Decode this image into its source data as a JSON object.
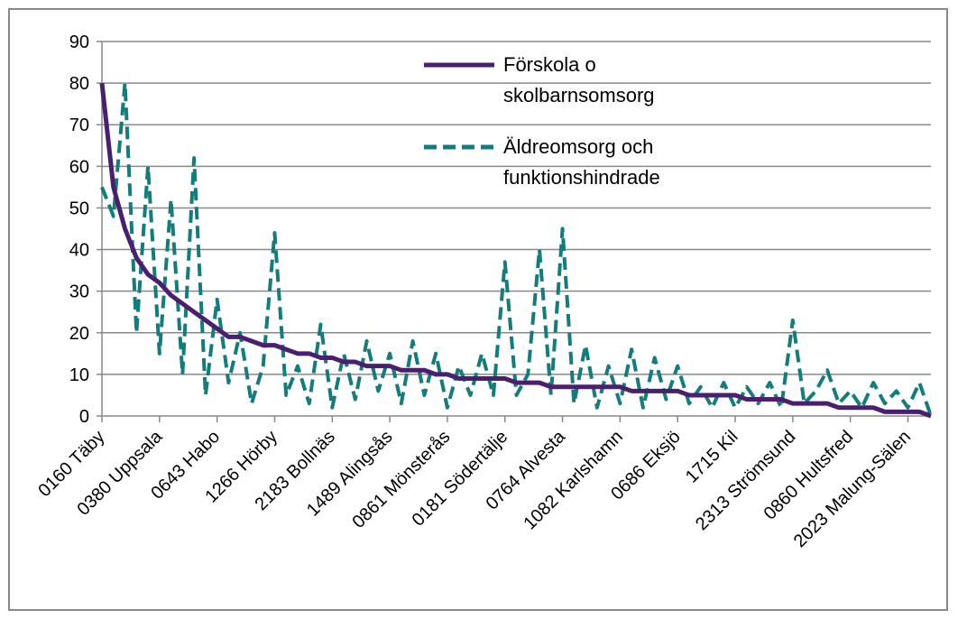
{
  "chart_data": {
    "type": "line",
    "categories": [
      "0160 Täby",
      null,
      null,
      null,
      null,
      "0380 Uppsala",
      null,
      null,
      null,
      null,
      "0643 Habo",
      null,
      null,
      null,
      null,
      "1266 Hörby",
      null,
      null,
      null,
      null,
      "2183 Bollnäs",
      null,
      null,
      null,
      null,
      "1489 Alingsås",
      null,
      null,
      null,
      null,
      "0861 Mönsterås",
      null,
      null,
      null,
      null,
      "0181 Södertälje",
      null,
      null,
      null,
      null,
      "0764 Alvesta",
      null,
      null,
      null,
      null,
      "1082 Karlshamn",
      null,
      null,
      null,
      null,
      "0686 Eksjö",
      null,
      null,
      null,
      null,
      "1715 Kil",
      null,
      null,
      null,
      null,
      "2313 Strömsund",
      null,
      null,
      null,
      null,
      "0860 Hultsfred",
      null,
      null,
      null,
      null,
      "2023 Malung-Sälen",
      null,
      null
    ],
    "series": [
      {
        "name": "Förskola o skolbarnsomsorg",
        "color": "#4b1f6f",
        "dashed": false,
        "values": [
          80,
          55,
          45,
          38,
          34,
          32,
          29,
          27,
          25,
          23,
          21,
          19,
          19,
          18,
          17,
          17,
          16,
          15,
          15,
          14,
          14,
          13,
          13,
          12,
          12,
          12,
          11,
          11,
          11,
          10,
          10,
          9,
          9,
          9,
          9,
          9,
          8,
          8,
          8,
          7,
          7,
          7,
          7,
          7,
          7,
          7,
          6,
          6,
          6,
          6,
          6,
          5,
          5,
          5,
          5,
          5,
          4,
          4,
          4,
          4,
          3,
          3,
          3,
          3,
          2,
          2,
          2,
          2,
          1,
          1,
          1,
          1,
          0
        ]
      },
      {
        "name": "Äldreomsorg och funktionshindrade",
        "color": "#137c7c",
        "dashed": true,
        "values": [
          55,
          48,
          80,
          20,
          60,
          15,
          52,
          10,
          62,
          5,
          28,
          8,
          20,
          3,
          12,
          44,
          5,
          12,
          3,
          22,
          2,
          15,
          4,
          18,
          6,
          15,
          3,
          18,
          5,
          15,
          2,
          12,
          5,
          15,
          5,
          37,
          5,
          10,
          40,
          5,
          45,
          3,
          17,
          2,
          12,
          3,
          16,
          2,
          14,
          4,
          12,
          3,
          7,
          2,
          8,
          2,
          7,
          3,
          8,
          2,
          23,
          3,
          6,
          11,
          3,
          6,
          2,
          8,
          3,
          6,
          2,
          8,
          0
        ]
      }
    ],
    "ylim": [
      0,
      90
    ],
    "yticks": [
      0,
      10,
      20,
      30,
      40,
      50,
      60,
      70,
      80,
      90
    ],
    "grid": true
  }
}
